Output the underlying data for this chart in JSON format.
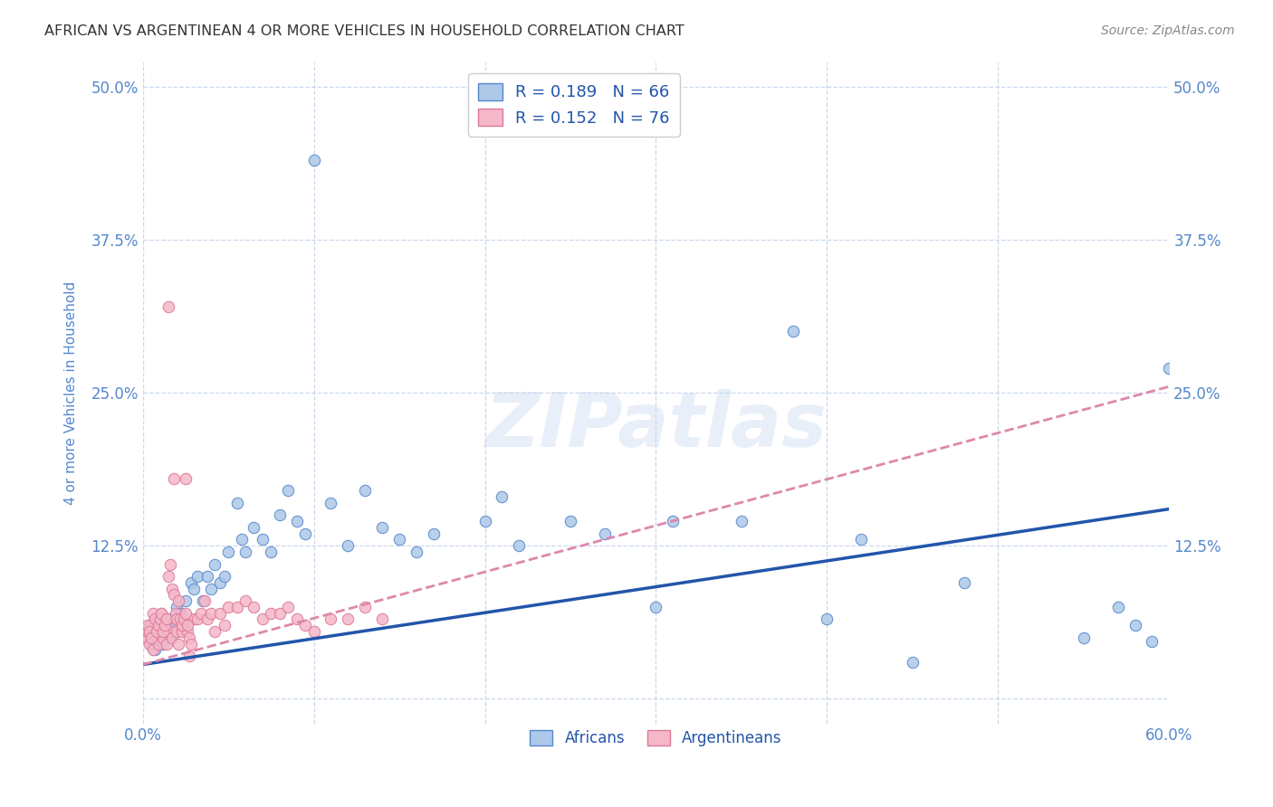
{
  "title": "AFRICAN VS ARGENTINEAN 4 OR MORE VEHICLES IN HOUSEHOLD CORRELATION CHART",
  "source": "Source: ZipAtlas.com",
  "ylabel_label": "4 or more Vehicles in Household",
  "x_min": 0.0,
  "x_max": 0.6,
  "y_min": -0.02,
  "y_max": 0.52,
  "x_ticks": [
    0.0,
    0.1,
    0.2,
    0.3,
    0.4,
    0.5,
    0.6
  ],
  "x_tick_labels": [
    "0.0%",
    "",
    "",
    "",
    "",
    "",
    "60.0%"
  ],
  "y_ticks": [
    0.0,
    0.125,
    0.25,
    0.375,
    0.5
  ],
  "y_tick_labels": [
    "",
    "12.5%",
    "25.0%",
    "37.5%",
    "50.0%"
  ],
  "africans_color": "#adc8e8",
  "argentineans_color": "#f5b8c8",
  "africans_edge_color": "#5588cc",
  "argentineans_edge_color": "#dd7799",
  "africans_line_color": "#2255aa",
  "argentineans_line_color": "#dd88aa",
  "tick_color": "#5588cc",
  "africans_R": 0.189,
  "africans_N": 66,
  "argentineans_R": 0.152,
  "argentineans_N": 76,
  "watermark": "ZIPatlas",
  "background_color": "#ffffff",
  "grid_color": "#c8d8ec",
  "africans_x": [
    0.003,
    0.004,
    0.005,
    0.006,
    0.007,
    0.008,
    0.009,
    0.01,
    0.011,
    0.012,
    0.013,
    0.014,
    0.015,
    0.016,
    0.017,
    0.018,
    0.019,
    0.02,
    0.022,
    0.025,
    0.028,
    0.03,
    0.032,
    0.035,
    0.038,
    0.04,
    0.042,
    0.045,
    0.048,
    0.05,
    0.055,
    0.058,
    0.06,
    0.065,
    0.07,
    0.075,
    0.08,
    0.085,
    0.09,
    0.095,
    0.1,
    0.11,
    0.12,
    0.13,
    0.14,
    0.15,
    0.16,
    0.17,
    0.2,
    0.21,
    0.22,
    0.25,
    0.27,
    0.3,
    0.31,
    0.35,
    0.38,
    0.4,
    0.42,
    0.45,
    0.48,
    0.55,
    0.57,
    0.58,
    0.59,
    0.6
  ],
  "africans_y": [
    0.05,
    0.06,
    0.045,
    0.055,
    0.04,
    0.065,
    0.05,
    0.055,
    0.06,
    0.045,
    0.05,
    0.055,
    0.065,
    0.05,
    0.06,
    0.055,
    0.06,
    0.075,
    0.07,
    0.08,
    0.095,
    0.09,
    0.1,
    0.08,
    0.1,
    0.09,
    0.11,
    0.095,
    0.1,
    0.12,
    0.16,
    0.13,
    0.12,
    0.14,
    0.13,
    0.12,
    0.15,
    0.17,
    0.145,
    0.135,
    0.44,
    0.16,
    0.125,
    0.17,
    0.14,
    0.13,
    0.12,
    0.135,
    0.145,
    0.165,
    0.125,
    0.145,
    0.135,
    0.075,
    0.145,
    0.145,
    0.3,
    0.065,
    0.13,
    0.03,
    0.095,
    0.05,
    0.075,
    0.06,
    0.047,
    0.27
  ],
  "argentineans_x": [
    0.002,
    0.003,
    0.004,
    0.005,
    0.006,
    0.007,
    0.008,
    0.009,
    0.01,
    0.011,
    0.012,
    0.013,
    0.014,
    0.015,
    0.016,
    0.017,
    0.018,
    0.019,
    0.02,
    0.021,
    0.022,
    0.023,
    0.024,
    0.025,
    0.026,
    0.027,
    0.028,
    0.03,
    0.032,
    0.034,
    0.036,
    0.038,
    0.04,
    0.042,
    0.045,
    0.048,
    0.05,
    0.055,
    0.06,
    0.065,
    0.07,
    0.075,
    0.08,
    0.085,
    0.09,
    0.095,
    0.1,
    0.11,
    0.12,
    0.13,
    0.14,
    0.003,
    0.004,
    0.005,
    0.006,
    0.007,
    0.008,
    0.009,
    0.01,
    0.011,
    0.012,
    0.013,
    0.014,
    0.015,
    0.016,
    0.017,
    0.018,
    0.019,
    0.02,
    0.021,
    0.022,
    0.023,
    0.024,
    0.025,
    0.026,
    0.027
  ],
  "argentineans_y": [
    0.05,
    0.055,
    0.045,
    0.06,
    0.04,
    0.055,
    0.05,
    0.045,
    0.06,
    0.07,
    0.05,
    0.055,
    0.045,
    0.32,
    0.055,
    0.05,
    0.18,
    0.065,
    0.055,
    0.045,
    0.065,
    0.055,
    0.06,
    0.18,
    0.055,
    0.05,
    0.045,
    0.065,
    0.065,
    0.07,
    0.08,
    0.065,
    0.07,
    0.055,
    0.07,
    0.06,
    0.075,
    0.075,
    0.08,
    0.075,
    0.065,
    0.07,
    0.07,
    0.075,
    0.065,
    0.06,
    0.055,
    0.065,
    0.065,
    0.075,
    0.065,
    0.06,
    0.055,
    0.05,
    0.07,
    0.065,
    0.055,
    0.06,
    0.065,
    0.07,
    0.055,
    0.06,
    0.065,
    0.1,
    0.11,
    0.09,
    0.085,
    0.07,
    0.065,
    0.08,
    0.065,
    0.06,
    0.065,
    0.07,
    0.06,
    0.035
  ]
}
